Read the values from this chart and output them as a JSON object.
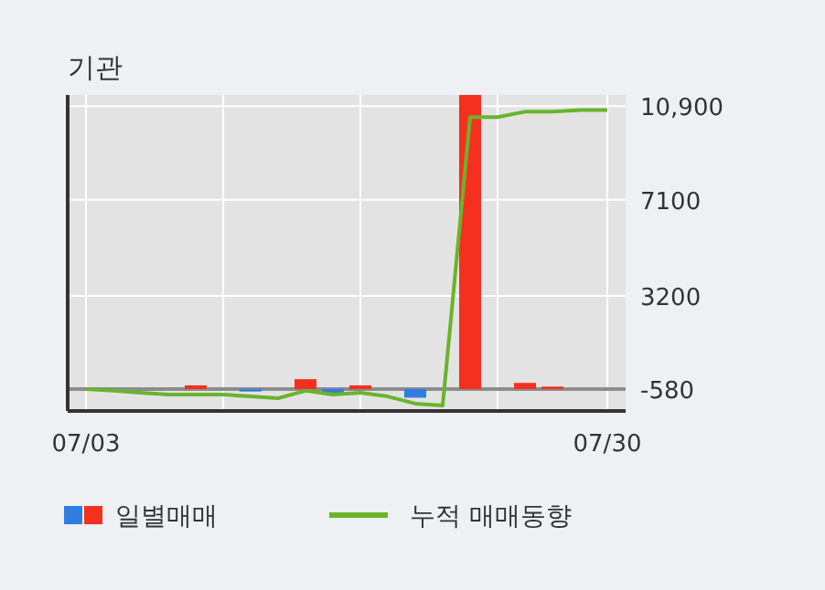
{
  "chart_data": {
    "type": "bar",
    "title": "기관",
    "categories": [
      "07/03",
      null,
      null,
      null,
      null,
      null,
      null,
      null,
      null,
      null,
      null,
      null,
      null,
      null,
      null,
      null,
      null,
      null,
      null,
      "07/30"
    ],
    "series": [
      {
        "name": "일별매매",
        "color": "#f5301f",
        "colors": [
          "#f5301f",
          "#f5301f",
          "#f5301f",
          "#f5301f",
          "#f5301f",
          "#f5301f",
          "#2f7de1",
          "#f5301f",
          "#f5301f",
          "#2f7de1",
          "#f5301f",
          "#f5301f",
          "#2f7de1",
          "#f5301f",
          "#f5301f",
          "#f5301f",
          "#f5301f",
          "#f5301f",
          "#f5301f",
          "#f5301f"
        ],
        "base": [
          null,
          null,
          null,
          null,
          -580,
          null,
          -580,
          null,
          -580,
          -580,
          -580,
          null,
          -580,
          null,
          -580,
          null,
          -580,
          -580,
          null,
          null
        ],
        "values": [
          null,
          null,
          null,
          null,
          150,
          null,
          -100,
          null,
          400,
          -150,
          150,
          null,
          -350,
          null,
          11930,
          null,
          250,
          100,
          null,
          null
        ]
      },
      {
        "name": "누적 매매동향",
        "type": "line",
        "color": "#6ab42b",
        "values": [
          -580,
          -650,
          -730,
          -800,
          -800,
          -800,
          -880,
          -950,
          -650,
          -800,
          -730,
          -880,
          -1170,
          -1250,
          10450,
          10450,
          10670,
          10670,
          10740,
          10740
        ]
      }
    ],
    "ylim": [
      -1470,
      11350
    ],
    "yticks": [
      -580,
      3200,
      7100,
      {
        "value": 10900,
        "label": "10,900"
      }
    ],
    "ref_lines": [
      {
        "axis": "y",
        "value": -580,
        "color": "#8c8c8c"
      }
    ],
    "grid": true,
    "legend": "bottom"
  }
}
